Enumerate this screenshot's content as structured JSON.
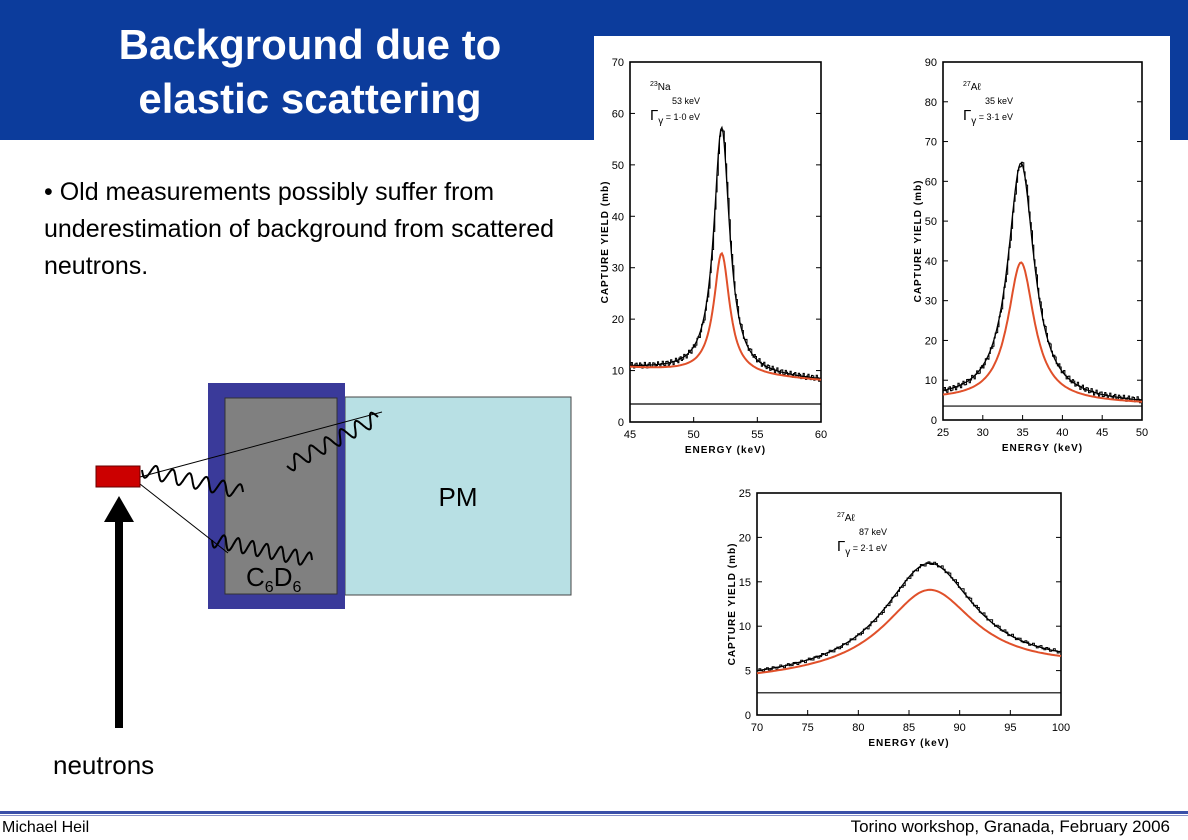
{
  "slide": {
    "title_line1": "Background due to",
    "title_line2": "elastic scattering",
    "bullet": "• Old measurements possibly suffer from underestimation of background from scattered neutrons.",
    "colors": {
      "header": "#0c3c9c",
      "detector_frame": "#3a3a9a",
      "detector_core": "#808080",
      "pm": "#b8e0e4",
      "source": "#cc0000",
      "red_curve": "#e0502a"
    }
  },
  "diagram": {
    "pm_label": "PM",
    "detector_label_c": "C",
    "detector_label_c_sub": "6",
    "detector_label_d": "D",
    "detector_label_d_sub": "6",
    "neutrons_label": "neutrons"
  },
  "footer": {
    "author": "Michael Heil",
    "event": "Torino workshop, Granada,  February 2006"
  },
  "chart_data": [
    {
      "type": "line",
      "ylabel": "CAPTURE  YIELD  (mb)",
      "xlabel": "ENERGY (keV)",
      "nucleus_mass": "23",
      "nucleus": "Na",
      "resonance": "53 keV",
      "gamma_label": "Γ",
      "gamma_sub": "γ",
      "gamma_value": "= 1·0 eV",
      "xlim": [
        45,
        60
      ],
      "ylim": [
        0,
        70
      ],
      "xticks": [
        45,
        50,
        55,
        60
      ],
      "yticks": [
        0,
        10,
        20,
        30,
        40,
        50,
        60,
        70
      ],
      "peak": {
        "x0": 52.2,
        "width": 0.75,
        "black_amp": 48,
        "red_amp": 23.5,
        "base_left": 10.5,
        "base_right": 8
      },
      "floor": 3.5
    },
    {
      "type": "line",
      "ylabel": "CAPTURE  YIELD  (mb)",
      "xlabel": "ENERGY (keV)",
      "nucleus_mass": "27",
      "nucleus": "Aℓ",
      "resonance": "35 keV",
      "gamma_label": "Γ",
      "gamma_sub": "γ",
      "gamma_value": "= 3·1 eV",
      "xlim": [
        25,
        50
      ],
      "ylim": [
        0,
        90
      ],
      "xticks": [
        25,
        30,
        35,
        40,
        45,
        50
      ],
      "yticks": [
        0,
        10,
        20,
        30,
        40,
        50,
        60,
        70,
        80,
        90
      ],
      "peak": {
        "x0": 34.8,
        "width": 2.0,
        "black_amp": 60,
        "red_amp": 35,
        "base_left": 5,
        "base_right": 4
      },
      "floor": 3.5
    },
    {
      "type": "line",
      "ylabel": "CAPTURE  YIELD  (mb)",
      "xlabel": "ENERGY  (keV)",
      "nucleus_mass": "27",
      "nucleus": "Aℓ",
      "resonance": "87 keV",
      "gamma_label": "Γ",
      "gamma_sub": "γ",
      "gamma_value": "= 2·1 eV",
      "xlim": [
        70,
        100
      ],
      "ylim": [
        0,
        25
      ],
      "xticks": [
        70,
        75,
        80,
        85,
        90,
        95,
        100
      ],
      "yticks": [
        0,
        5,
        10,
        15,
        20,
        25
      ],
      "peak": {
        "x0": 87,
        "width": 5.5,
        "black_amp": 12.5,
        "red_amp": 9.5,
        "base_left": 3.8,
        "base_right": 5.2
      },
      "floor": 2.5
    }
  ]
}
